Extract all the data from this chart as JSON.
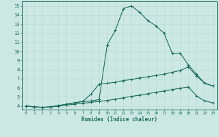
{
  "xlabel": "Humidex (Indice chaleur)",
  "xlim_min": -0.5,
  "xlim_max": 23.5,
  "ylim_min": 3.6,
  "ylim_max": 15.5,
  "yticks": [
    4,
    5,
    6,
    7,
    8,
    9,
    10,
    11,
    12,
    13,
    14,
    15
  ],
  "xticks": [
    0,
    1,
    2,
    3,
    4,
    5,
    6,
    7,
    8,
    9,
    10,
    11,
    12,
    13,
    14,
    15,
    16,
    17,
    18,
    19,
    20,
    21,
    22,
    23
  ],
  "bg_color": "#cce8e2",
  "line_color": "#1a6b5a",
  "grid_color": "#b8d8d2",
  "curve_top_x": [
    0,
    1,
    2,
    3,
    4,
    5,
    6,
    7,
    8,
    9,
    10,
    11,
    12,
    13,
    14,
    15,
    16,
    17,
    18,
    19,
    20,
    21,
    22,
    23
  ],
  "curve_top_y": [
    4.0,
    3.9,
    3.85,
    3.9,
    4.05,
    4.2,
    4.35,
    4.5,
    4.55,
    4.7,
    10.7,
    12.3,
    14.7,
    15.0,
    14.3,
    13.4,
    12.8,
    12.0,
    9.8,
    9.8,
    8.5,
    7.5,
    6.5,
    6.2
  ],
  "curve_mid_x": [
    0,
    1,
    2,
    3,
    4,
    5,
    6,
    7,
    8,
    9,
    10,
    11,
    12,
    13,
    14,
    15,
    16,
    17,
    18,
    19,
    20,
    21,
    22,
    23
  ],
  "curve_mid_y": [
    4.0,
    3.9,
    3.85,
    3.9,
    4.0,
    4.2,
    4.35,
    4.5,
    5.3,
    6.4,
    6.5,
    6.6,
    6.8,
    6.9,
    7.1,
    7.2,
    7.35,
    7.5,
    7.7,
    7.9,
    8.3,
    7.3,
    6.5,
    6.2
  ],
  "curve_bot_x": [
    0,
    1,
    2,
    3,
    4,
    5,
    6,
    7,
    8,
    9,
    10,
    11,
    12,
    13,
    14,
    15,
    16,
    17,
    18,
    19,
    20,
    21,
    22,
    23
  ],
  "curve_bot_y": [
    4.0,
    3.9,
    3.85,
    3.9,
    4.0,
    4.1,
    4.2,
    4.3,
    4.4,
    4.5,
    4.6,
    4.75,
    4.9,
    5.05,
    5.2,
    5.35,
    5.5,
    5.65,
    5.8,
    5.95,
    6.1,
    5.1,
    4.55,
    4.35
  ]
}
